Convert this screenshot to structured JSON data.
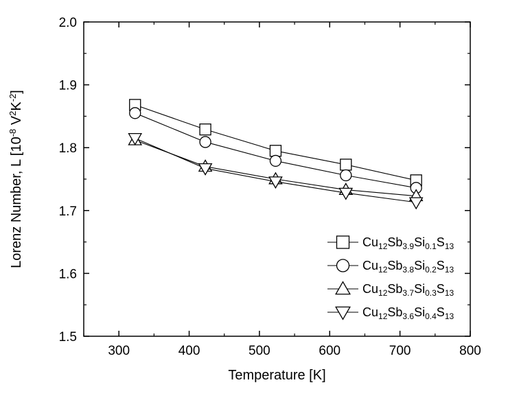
{
  "chart_data": {
    "type": "line",
    "title": "",
    "xlabel": "Temperature [K]",
    "ylabel": "Lorenz Number, L [10",
    "ylabel_sup1": "-8",
    "ylabel_mid": " V",
    "ylabel_sup2": "2",
    "ylabel_mid2": "K",
    "ylabel_sup3": "-2",
    "ylabel_end": "]",
    "xlim": [
      250,
      800
    ],
    "ylim": [
      1.5,
      2.0
    ],
    "xticks": [
      300,
      400,
      500,
      600,
      700,
      800
    ],
    "yticks": [
      1.5,
      1.6,
      1.7,
      1.8,
      1.9,
      2.0
    ],
    "xtick_labels": [
      "300",
      "400",
      "500",
      "600",
      "700",
      "800"
    ],
    "ytick_labels": [
      "1.5",
      "1.6",
      "1.7",
      "1.8",
      "1.9",
      "2.0"
    ],
    "grid": false,
    "legend_position": "bottom-right",
    "x": [
      323,
      423,
      523,
      623,
      723
    ],
    "series": [
      {
        "marker": "square",
        "label_parts": [
          "Cu",
          "12",
          "Sb",
          "3.9",
          "Si",
          "0.1",
          "S",
          "13"
        ],
        "values": [
          1.868,
          1.829,
          1.795,
          1.773,
          1.748
        ]
      },
      {
        "marker": "circle",
        "label_parts": [
          "Cu",
          "12",
          "Sb",
          "3.8",
          "Si",
          "0.2",
          "S",
          "13"
        ],
        "values": [
          1.855,
          1.809,
          1.779,
          1.756,
          1.736
        ]
      },
      {
        "marker": "triangle-up",
        "label_parts": [
          "Cu",
          "12",
          "Sb",
          "3.7",
          "Si",
          "0.3",
          "S",
          "13"
        ],
        "values": [
          1.812,
          1.77,
          1.75,
          1.733,
          1.723
        ]
      },
      {
        "marker": "triangle-down",
        "label_parts": [
          "Cu",
          "12",
          "Sb",
          "3.6",
          "Si",
          "0.4",
          "S",
          "13"
        ],
        "values": [
          1.815,
          1.767,
          1.746,
          1.728,
          1.713
        ]
      }
    ]
  }
}
